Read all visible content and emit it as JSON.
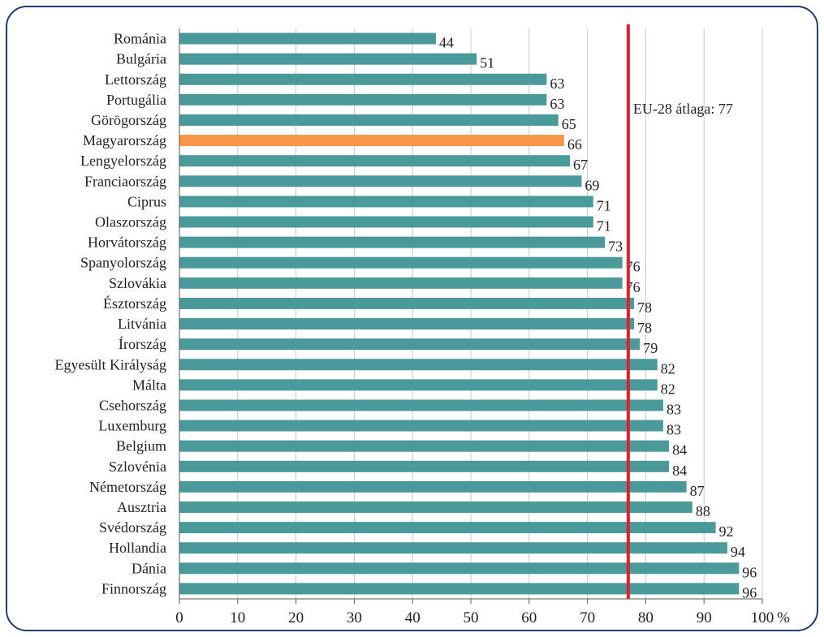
{
  "chart_data": {
    "type": "bar",
    "orientation": "horizontal",
    "categories": [
      "Románia",
      "Bulgária",
      "Lettország",
      "Portugália",
      "Görögország",
      "Magyarország",
      "Lengyelország",
      "Franciaország",
      "Ciprus",
      "Olaszország",
      "Horvátország",
      "Spanyolország",
      "Szlovákia",
      "Észtország",
      "Litvánia",
      "Írország",
      "Egyesült Királyság",
      "Málta",
      "Csehország",
      "Luxemburg",
      "Belgium",
      "Szlovénia",
      "Németország",
      "Ausztria",
      "Svédország",
      "Hollandia",
      "Dánia",
      "Finnország"
    ],
    "values": [
      44,
      51,
      63,
      63,
      65,
      66,
      67,
      69,
      71,
      71,
      73,
      76,
      76,
      78,
      78,
      79,
      82,
      82,
      83,
      83,
      84,
      84,
      87,
      88,
      92,
      94,
      96,
      96
    ],
    "value_labels": [
      "44",
      "51",
      "63",
      "63",
      "65",
      "66",
      "67",
      "69",
      "71",
      "71",
      "73",
      "76",
      "76",
      "78",
      "78",
      "79",
      "82",
      "82",
      "83",
      "83",
      "84",
      "84",
      "87",
      "88",
      "92",
      "94",
      "96",
      "96"
    ],
    "highlight": "Magyarország",
    "xlim": [
      0,
      100
    ],
    "xticks": [
      "0",
      "10",
      "20",
      "30",
      "40",
      "50",
      "60",
      "70",
      "80",
      "90",
      "100"
    ],
    "unit_label": "%",
    "reference_line": {
      "value": 77,
      "label": "EU-28 átlaga: 77"
    },
    "grid": "vertical",
    "legend": "none",
    "colors": {
      "bar": "#4a9a9c",
      "highlight": "#f79646",
      "reference": "#e0202e",
      "grid": "#c8c8c8"
    }
  }
}
